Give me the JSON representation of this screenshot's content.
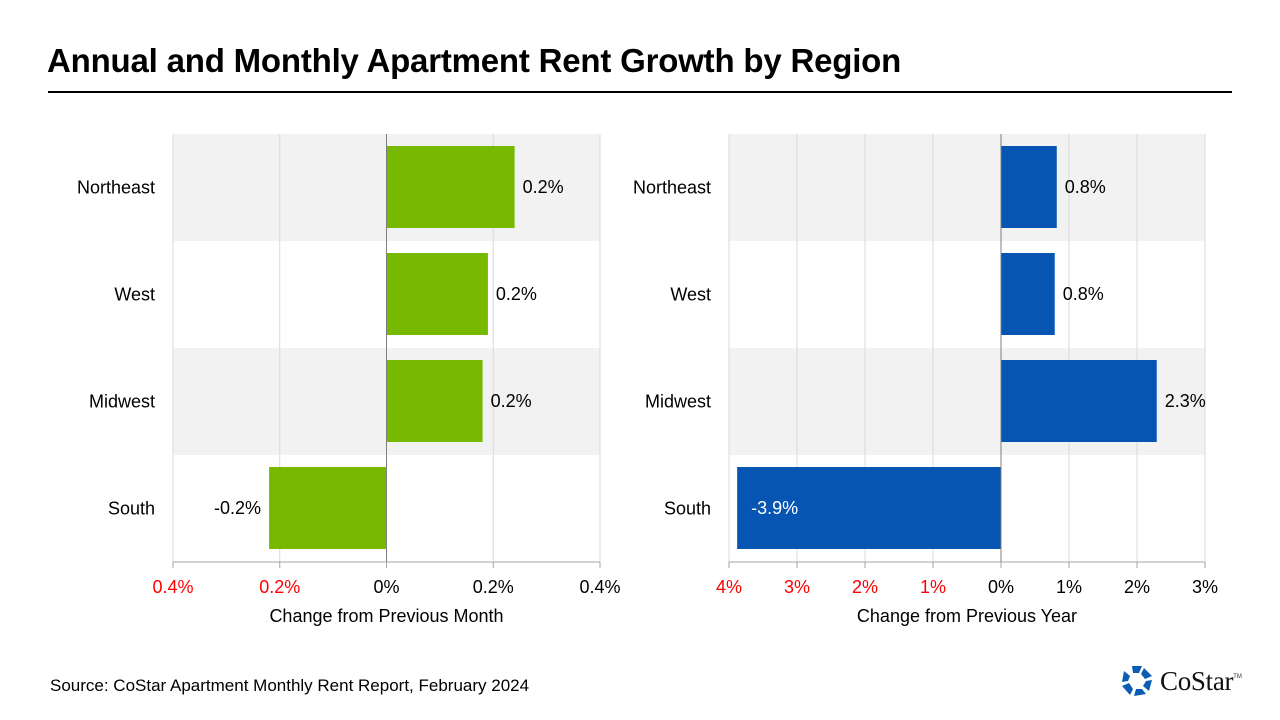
{
  "title": "Annual and Monthly Apartment Rent Growth by Region",
  "source": "Source: CoStar Apartment Monthly  Rent Report, February 2024",
  "logo": {
    "text": "CoStar",
    "tm": "TM",
    "icon": "costar-star-icon"
  },
  "colors": {
    "green": "#76B900",
    "blue": "#0655B3",
    "band": "#F2F2F2",
    "grid": "#D9D9D9",
    "negative_tick": "#FF0000"
  },
  "chart_data": [
    {
      "type": "bar",
      "orientation": "horizontal",
      "categories": [
        "Northeast",
        "West",
        "Midwest",
        "South"
      ],
      "values": [
        0.24,
        0.19,
        0.18,
        -0.22
      ],
      "data_labels": [
        "0.2%",
        "0.2%",
        "0.2%",
        "-0.2%"
      ],
      "xlabel": "Change from Previous Month",
      "xlim": [
        -0.4,
        0.4
      ],
      "ticks": [
        -0.4,
        -0.2,
        0,
        0.2,
        0.4
      ],
      "tick_labels": [
        "0.4%",
        "0.2%",
        "0%",
        "0.2%",
        "0.4%"
      ],
      "negative_ticks_red": true,
      "color": "#76B900",
      "grid": true
    },
    {
      "type": "bar",
      "orientation": "horizontal",
      "categories": [
        "Northeast",
        "West",
        "Midwest",
        "South"
      ],
      "values": [
        0.82,
        0.79,
        2.29,
        -3.88
      ],
      "data_labels": [
        "0.8%",
        "0.8%",
        "2.3%",
        "-3.9%"
      ],
      "xlabel": "Change from Previous Year",
      "xlim": [
        -4,
        3
      ],
      "ticks": [
        -4,
        -3,
        -2,
        -1,
        0,
        1,
        2,
        3
      ],
      "tick_labels": [
        "4%",
        "3%",
        "2%",
        "1%",
        "0%",
        "1%",
        "2%",
        "3%"
      ],
      "negative_ticks_red": true,
      "color": "#0655B3",
      "grid": true
    }
  ]
}
